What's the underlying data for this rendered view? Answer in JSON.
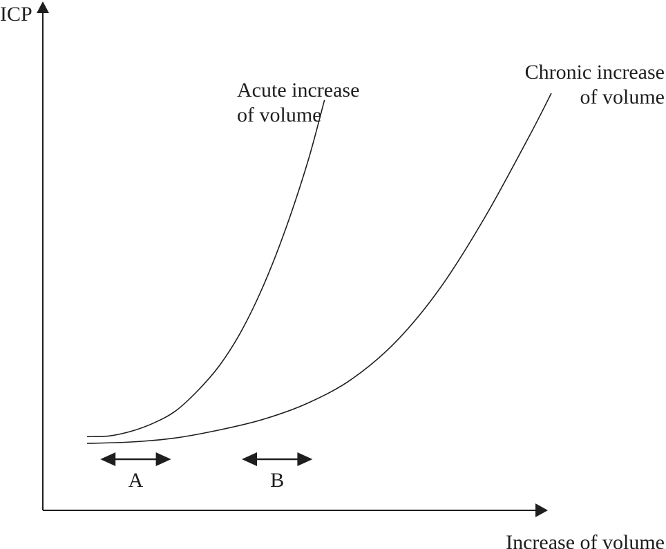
{
  "chart_data": {
    "type": "line",
    "title": "",
    "xlabel": "Increase of volume",
    "ylabel": "ICP",
    "grid": false,
    "legend": "none",
    "series": [
      {
        "name": "Acute increase of volume",
        "label_lines": [
          "Acute increase",
          "of volume"
        ],
        "x": [
          1.0,
          1.5,
          2.0,
          2.5,
          3.0,
          3.5,
          4.0,
          4.5,
          5.0,
          5.5,
          6.0,
          6.37
        ],
        "y": [
          1.5,
          1.55,
          1.9,
          2.5,
          3.4,
          4.9,
          6.8,
          9.4,
          12.8,
          17.0,
          22.0,
          26.5
        ]
      },
      {
        "name": "Chronic increase of volume",
        "label_lines": [
          "Chronic increase",
          "of volume"
        ],
        "x": [
          1.0,
          2.0,
          3.0,
          4.0,
          5.0,
          6.0,
          7.0,
          8.0,
          9.0,
          10.0,
          11.0,
          11.5
        ],
        "y": [
          1.0,
          1.1,
          1.4,
          2.0,
          2.8,
          4.0,
          5.8,
          8.6,
          12.6,
          17.8,
          23.8,
          27.0
        ]
      }
    ],
    "ranges": [
      {
        "label": "A",
        "x_start": 1.3,
        "x_end": 2.9
      },
      {
        "label": "B",
        "x_start": 4.5,
        "x_end": 6.1
      }
    ]
  }
}
